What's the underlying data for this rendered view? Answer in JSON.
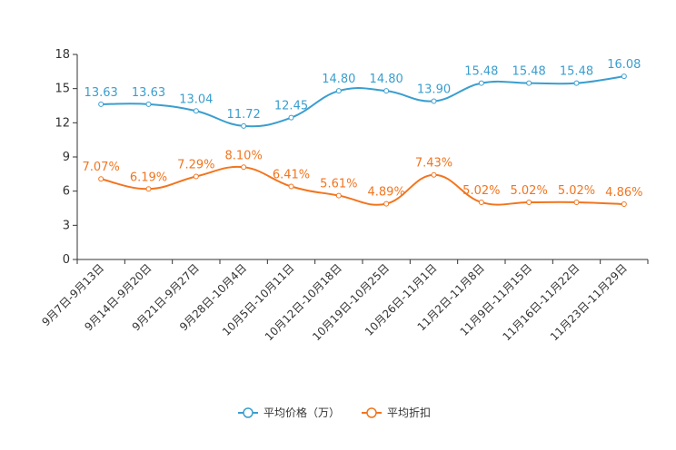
{
  "chart_data": {
    "type": "line",
    "categories": [
      "9月7日-9月13日",
      "9月14日-9月20日",
      "9月21日-9月27日",
      "9月28日-10月4日",
      "10月5日-10月11日",
      "10月12日-10月18日",
      "10月19日-10月25日",
      "10月26日-11月1日",
      "11月2日-11月8日",
      "11月9日-11月15日",
      "11月16日-11月22日",
      "11月23日-11月29日"
    ],
    "ylim": [
      0,
      18
    ],
    "yticks": [
      "0",
      "3",
      "6",
      "9",
      "12",
      "15",
      "18"
    ],
    "series": [
      {
        "name": "平均价格（万）",
        "color": "#3a9ecf",
        "values": [
          13.63,
          13.63,
          13.04,
          11.72,
          12.45,
          14.8,
          14.8,
          13.9,
          15.48,
          15.48,
          15.48,
          16.08
        ],
        "labels": [
          "13.63",
          "13.63",
          "13.04",
          "11.72",
          "12.45",
          "14.80",
          "14.80",
          "13.90",
          "15.48",
          "15.48",
          "15.48",
          "16.08"
        ]
      },
      {
        "name": "平均折扣",
        "color": "#f2751e",
        "values": [
          7.07,
          6.19,
          7.29,
          8.1,
          6.41,
          5.61,
          4.89,
          7.43,
          5.02,
          5.02,
          5.02,
          4.86
        ],
        "labels": [
          "7.07%",
          "6.19%",
          "7.29%",
          "8.10%",
          "6.41%",
          "5.61%",
          "4.89%",
          "7.43%",
          "5.02%",
          "5.02%",
          "5.02%",
          "4.86%"
        ]
      }
    ]
  }
}
